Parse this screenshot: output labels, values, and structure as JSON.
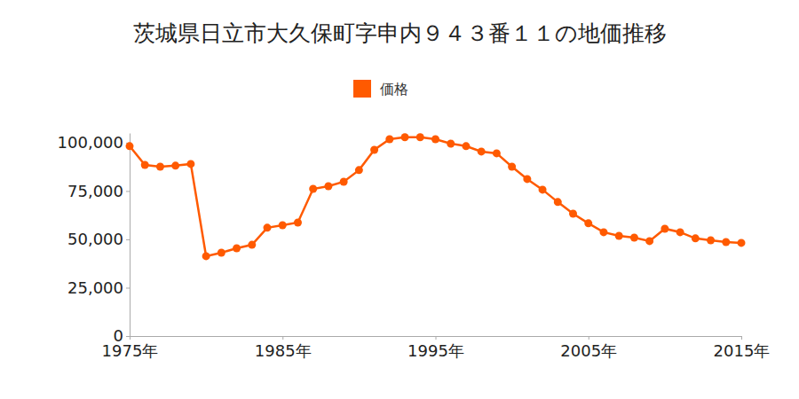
{
  "chart_data": {
    "type": "line",
    "title": "茨城県日立市大久保町字申内９４３番１１の地価推移",
    "x": [
      1975,
      1976,
      1977,
      1978,
      1979,
      1980,
      1981,
      1982,
      1983,
      1984,
      1985,
      1986,
      1987,
      1988,
      1989,
      1990,
      1991,
      1992,
      1993,
      1994,
      1995,
      1996,
      1997,
      1998,
      1999,
      2000,
      2001,
      2002,
      2003,
      2004,
      2005,
      2006,
      2007,
      2008,
      2009,
      2010,
      2011,
      2012,
      2013,
      2014,
      2015
    ],
    "series": [
      {
        "name": "価格",
        "color": "#ff5a00",
        "marker": "circle",
        "values": [
          98200,
          88500,
          87600,
          88100,
          89000,
          41300,
          43100,
          45400,
          47200,
          56000,
          57300,
          58700,
          76100,
          77500,
          79800,
          85800,
          96300,
          101800,
          102800,
          102800,
          101800,
          99500,
          98200,
          95400,
          94500,
          87600,
          81200,
          75700,
          69300,
          63300,
          58300,
          53700,
          51800,
          50900,
          49100,
          55500,
          53700,
          50500,
          49500,
          48600,
          48200
        ]
      }
    ],
    "xlim": [
      1975,
      2015
    ],
    "xticks": [
      {
        "value": 1975,
        "label": "1975年"
      },
      {
        "value": 1985,
        "label": "1985年"
      },
      {
        "value": 1995,
        "label": "1995年"
      },
      {
        "value": 2005,
        "label": "2005年"
      },
      {
        "value": 2015,
        "label": "2015年"
      }
    ],
    "ylim": [
      0,
      105000
    ],
    "yticks": [
      0,
      {
        "value": 25000,
        "label": "25,000"
      },
      {
        "value": 50000,
        "label": "50,000"
      },
      {
        "value": 75000,
        "label": "75,000"
      },
      {
        "value": 100000,
        "label": "100,000"
      }
    ],
    "grid": false,
    "legend": "top"
  }
}
